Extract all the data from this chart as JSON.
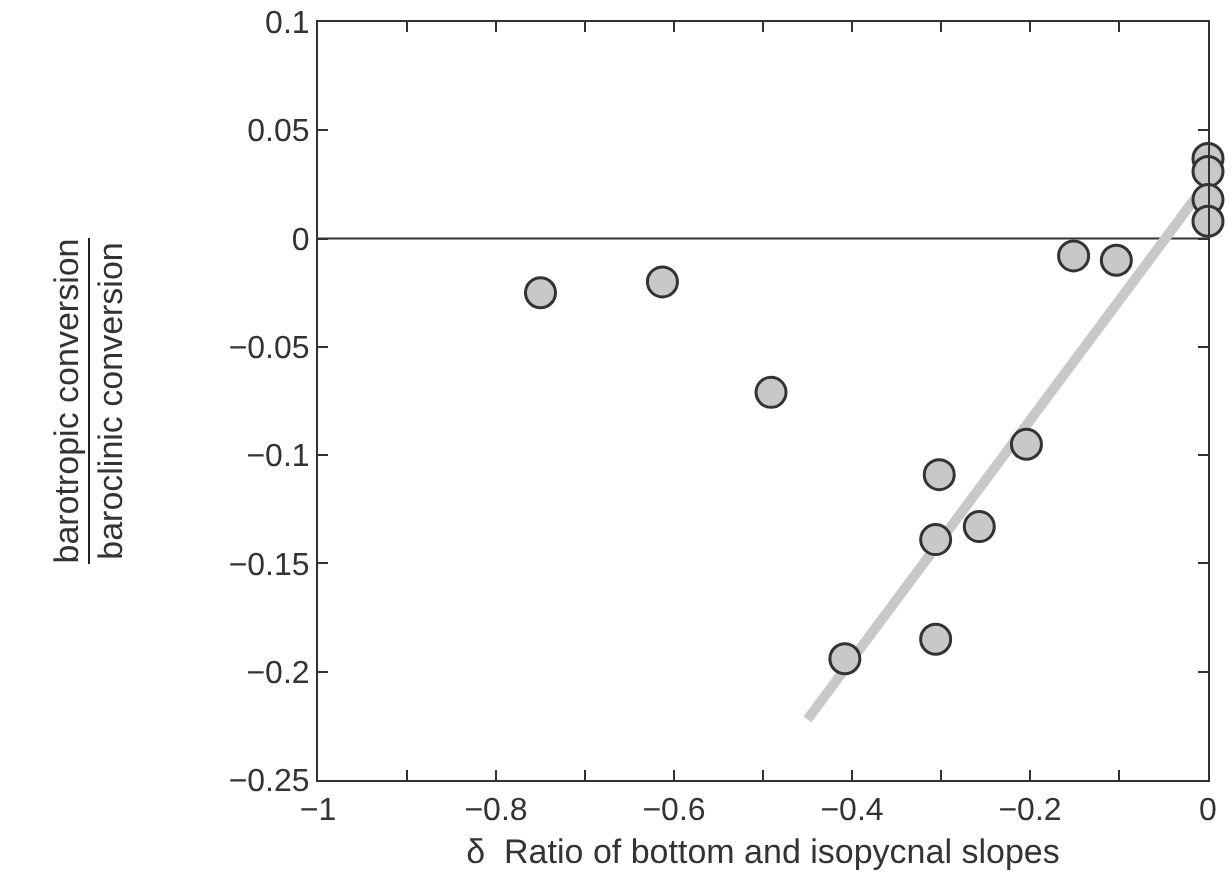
{
  "chart_data": {
    "type": "scatter",
    "xlabel": "δ  Ratio of bottom and isopycnal slopes",
    "ylabel": "barotropic conversion\nbaroclinic conversion",
    "xlim": [
      -1,
      0
    ],
    "ylim": [
      -0.25,
      0.1
    ],
    "xticks": [
      {
        "value": -1,
        "label": "−1"
      },
      {
        "value": -0.9,
        "label": null
      },
      {
        "value": -0.8,
        "label": "−0.8"
      },
      {
        "value": -0.7,
        "label": null
      },
      {
        "value": -0.6,
        "label": "−0.6"
      },
      {
        "value": -0.5,
        "label": null
      },
      {
        "value": -0.4,
        "label": "−0.4"
      },
      {
        "value": -0.3,
        "label": null
      },
      {
        "value": -0.2,
        "label": "−0.2"
      },
      {
        "value": -0.1,
        "label": null
      },
      {
        "value": 0,
        "label": "0"
      }
    ],
    "yticks": [
      {
        "value": -0.25,
        "label": "−0.25"
      },
      {
        "value": -0.2,
        "label": "−0.2"
      },
      {
        "value": -0.15,
        "label": "−0.15"
      },
      {
        "value": -0.1,
        "label": "−0.1"
      },
      {
        "value": -0.05,
        "label": "−0.05"
      },
      0,
      0.05,
      0.1
    ],
    "marker": "circle",
    "grid": false,
    "ref_lines": [
      {
        "axis": "y",
        "value": 0,
        "color": "#333333"
      }
    ],
    "series": [
      {
        "color": "#c8c8c8",
        "x": [
          -0.75,
          -0.613,
          -0.491,
          -0.408,
          -0.306,
          -0.302,
          -0.306,
          -0.257,
          -0.204,
          -0.151,
          -0.103,
          0,
          0,
          0,
          0
        ],
        "values": [
          -0.025,
          -0.02,
          -0.071,
          -0.194,
          -0.139,
          -0.109,
          -0.185,
          -0.133,
          -0.095,
          -0.008,
          -0.01,
          0.037,
          0.031,
          0.018,
          0.008
        ]
      },
      {
        "type": "line",
        "marker": "none",
        "color": "#c8c8c8",
        "x": [
          -0.45,
          -0.01
        ],
        "values": [
          -0.222,
          0.021
        ]
      }
    ]
  }
}
